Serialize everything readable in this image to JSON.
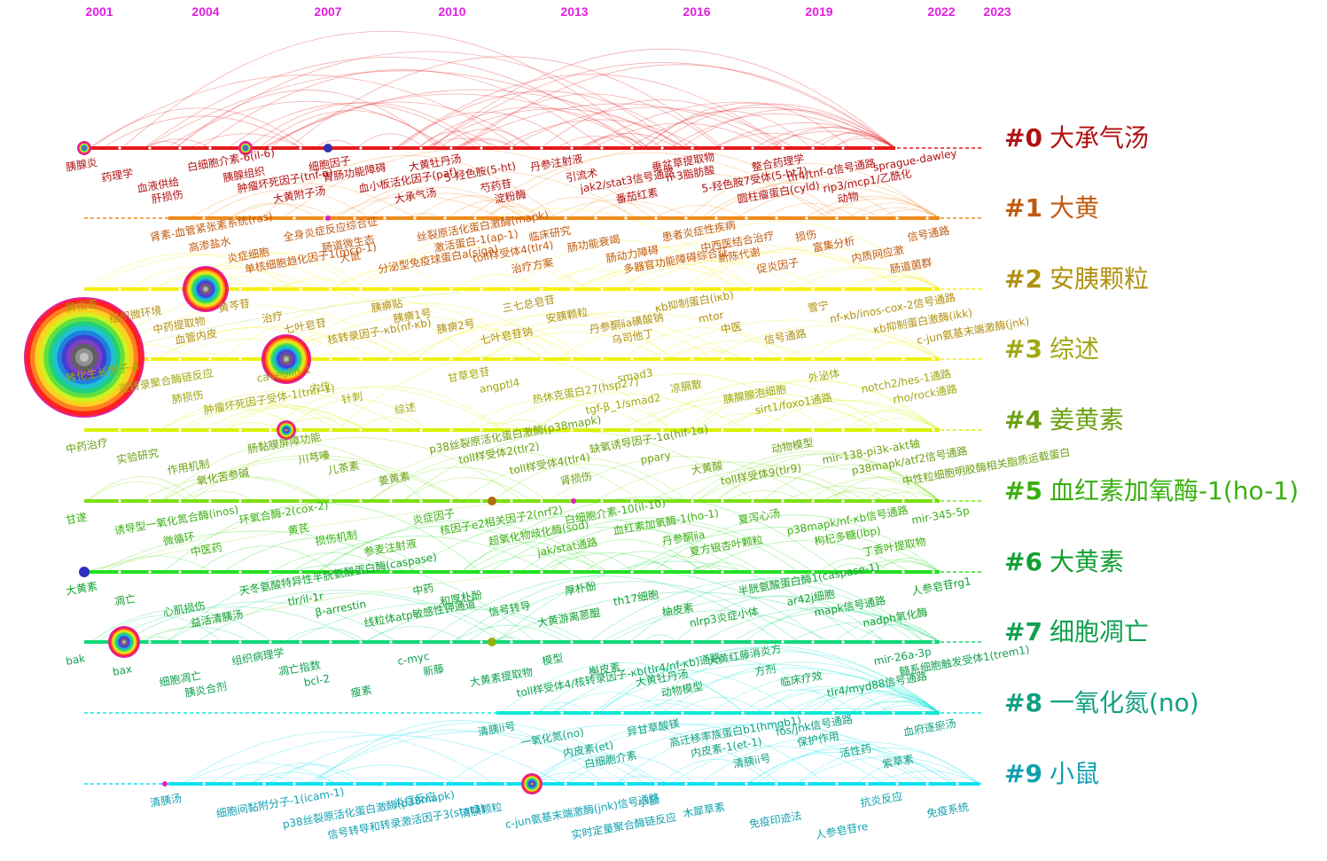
{
  "years": [
    "2001",
    "2004",
    "2007",
    "2010",
    "2013",
    "2016",
    "2019",
    "2022",
    "2023"
  ],
  "clusters": [
    {
      "id": "#0",
      "label": "大承气汤",
      "color": "#e41a1c",
      "text_color": "#b01010"
    },
    {
      "id": "#1",
      "label": "大黄",
      "color": "#f08a1a",
      "text_color": "#c05a10"
    },
    {
      "id": "#2",
      "label": "安胰颗粒",
      "color": "#f5f010",
      "text_color": "#b09010"
    },
    {
      "id": "#3",
      "label": "综述",
      "color": "#f0f010",
      "text_color": "#a0a810"
    },
    {
      "id": "#4",
      "label": "姜黄素",
      "color": "#d8f000",
      "text_color": "#6aa010"
    },
    {
      "id": "#5",
      "label": "血红素加氧酶-1(ho-1)",
      "color": "#7be010",
      "text_color": "#3ab010"
    },
    {
      "id": "#6",
      "label": "大黄素",
      "color": "#22e022",
      "text_color": "#10a030"
    },
    {
      "id": "#7",
      "label": "细胞凋亡",
      "color": "#10d878",
      "text_color": "#10a050"
    },
    {
      "id": "#8",
      "label": "一氧化氮(no)",
      "color": "#10e8d8",
      "text_color": "#10a080"
    },
    {
      "id": "#9",
      "label": "小鼠",
      "color": "#10e0f0",
      "text_color": "#10a0b0"
    }
  ],
  "keywords": {
    "c0": [
      "胰腺炎",
      "药理学",
      "血液供给",
      "肝损伤",
      "白细胞介素-6(il-6)",
      "胰腺组织",
      "肿瘤坏死因子(tnf-α)",
      "大黄附子汤",
      "细胞因子",
      "胃肠功能障碍",
      "血小板活化因子(paf)",
      "大承气汤",
      "大黄牡丹汤",
      "5-羟色胺(5-ht)",
      "芍药苷",
      "淀粉酶",
      "丹参注射液",
      "引流术",
      "jak2/stat3信号通路",
      "番茄红素",
      "垂盆草提取物",
      "n-3脂肪酸",
      "5-羟色胺7受体(5-ht7)",
      "圆柱瘤蛋白(cyld)",
      "整合药理学",
      "tlr4/tnf-α信号通路",
      "rip3/mcp1/乙酰化",
      "动物",
      "sprague-dawley"
    ],
    "c1": [
      "肾素-血管紧张素系统(ras)",
      "高渗盐水",
      "炎症细胞",
      "单核细胞趋化因子1(mcp-1)",
      "全身炎症反应综合征",
      "肠道微生态",
      "大鼠",
      "分泌型免疫球蛋白a(siga)",
      "丝裂原活化蛋白激酶(mapk)",
      "激活蛋白-1(ap-1)",
      "toll样受体4(tlr4)",
      "治疗方案",
      "临床研究",
      "肠功能衰竭",
      "肠动力障碍",
      "多器官功能障碍综合征",
      "患者炎症性疾病",
      "中西医结合治疗",
      "新陈代谢",
      "促炎因子",
      "损伤",
      "富集分析",
      "内质网应激",
      "肠道菌群",
      "信号通路"
    ],
    "c2": [
      "肺损害",
      "组织微环境",
      "中药提取物",
      "血管内皮",
      "黄芩苷",
      "治疗",
      "七叶皂苷",
      "核转录因子-κb(nf-κb)",
      "胰痹贴",
      "胰痹1号",
      "胰痹2号",
      "七叶皂苷钠",
      "三七总皂苷",
      "安胰颗粒",
      "丹参酮ⅱa磺酸钠",
      "乌司他丁",
      "κb抑制蛋白(iκb)",
      "mtor",
      "中医",
      "信号通路",
      "雪宁",
      "nf-κb/inos-cox-2信号通路",
      "κb抑制蛋白激酶(ikk)",
      "c-jun氨基末端激酶(jnk)"
    ],
    "c3": [
      "转化生长因子-β",
      "逆转录聚合酶链反应",
      "肺损伤",
      "肿瘤坏死因子受体-1(tnfr-1)",
      "caveolin-1",
      "穴位",
      "针刺",
      "综述",
      "甘草皂苷",
      "angptl4",
      "热休克蛋白27(hsp27)",
      "tgf-β_1/smad2",
      "smad3",
      "凉膈散",
      "胰腺腺泡细胞",
      "sirt1/foxo1通路",
      "外泌体",
      "notch2/hes-1通路",
      "rho/rock通路"
    ],
    "c4": [
      "中药治疗",
      "实验研究",
      "作用机制",
      "氧化苦参碱",
      "肠黏膜屏障功能",
      "川芎嗪",
      "儿茶素",
      "姜黄素",
      "p38丝裂原活化蛋白激酶(p38mapk)",
      "toll样受体2(tlr2)",
      "toll样受体4(tlr4)",
      "肾损伤",
      "缺氧诱导因子-1α(hif-1α)",
      "ppary",
      "大黄酸",
      "toll样受体9(tlr9)",
      "动物模型",
      "mir-138-pi3k-akt轴",
      "p38mapk/atf2信号通路",
      "中性粒细胞明胶酶相关脂质运载蛋白"
    ],
    "c5": [
      "甘遂",
      "诱导型一氧化氮合酶(inos)",
      "微循环",
      "中医药",
      "环氧合酶-2(cox-2)",
      "黄芪",
      "损伤机制",
      "参麦注射液",
      "炎症因子",
      "核因子e2相关因子2(nrf2)",
      "超氧化物歧化酶(sod)",
      "jak/stat通路",
      "白细胞介素-10(il-10)",
      "血红素加氧酶-1(ho-1)",
      "丹参酮ⅱa",
      "夏方银杏叶颗粒",
      "夏泻心汤",
      "p38mapk/nf-κb信号通路",
      "枸杞多糖(lbp)",
      "丁香叶提取物",
      "mir-345-5p"
    ],
    "c6": [
      "大黄素",
      "凋亡",
      "心肌损伤",
      "益活清胰汤",
      "天冬氨酸特异性半胱氨酸蛋白酶(caspase)",
      "tlr/il-1r",
      "β-arrestin",
      "线粒体atp敏感性钾通道",
      "中药",
      "和厚朴酚",
      "信号转导",
      "大黄游离蒽醌",
      "厚朴酚",
      "th17细胞",
      "柚皮素",
      "nlrp3炎症小体",
      "半胱氨酸蛋白酶1(caspase-1)",
      "ar42j细胞",
      "mapk信号通路",
      "nadph氧化酶",
      "人参皂苷rg1"
    ],
    "c7": [
      "bak",
      "bax",
      "细胞凋亡",
      "胰炎合剂",
      "组织病理学",
      "凋亡指数",
      "bcl-2",
      "瘦素",
      "c-myc",
      "新藤",
      "大黄素提取物",
      "toll样受体4/核转录因子-κb(tlr4/nf-κb)通路",
      "模型",
      "槲皮素",
      "大黄牡丹汤",
      "动物模型",
      "大黄红藤消炎方",
      "方剂",
      "临床疗效",
      "tlr4/myd88信号通路",
      "mir-26a-3p",
      "髓系细胞触发受体1(trem1)"
    ],
    "c8": [
      "清胰ii号",
      "一氧化氮(no)",
      "内皮素(et)",
      "白细胞介素",
      "异甘草酸镁",
      "高迁移率族蛋白b1(hmgb1)",
      "内皮素-1(et-1)",
      "清胰ii号",
      "fos/jnk信号通路",
      "保护作用",
      "活性药",
      "紫草素",
      "血府逐瘀汤"
    ],
    "c9": [
      "清胰汤",
      "细胞间黏附分子-1(icam-1)",
      "p38丝裂原活化蛋白激酶(p38mapk)",
      "信号转导和转录激活因子3(stat3)",
      "炎症反应",
      "清胰颗粒",
      "c-jun氨基末端激酶(jnk)信号通路",
      "实时定量聚合酶链反应",
      "小鼠",
      "木犀草素",
      "免疫印迹法",
      "人参皂苷re",
      "抗炎反应",
      "免疫系统"
    ]
  }
}
